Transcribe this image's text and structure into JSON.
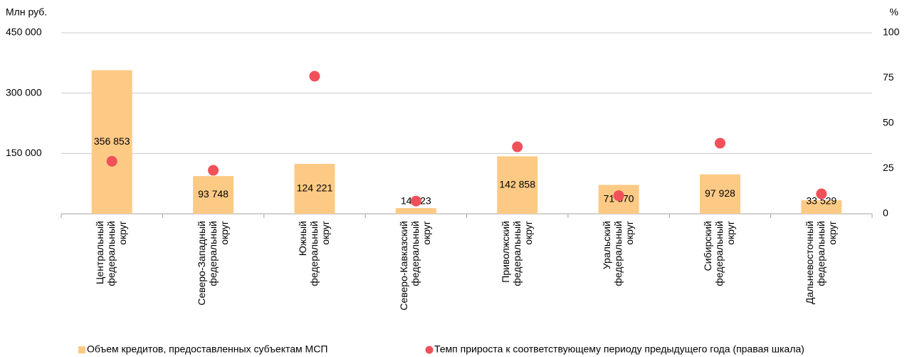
{
  "chart_data": {
    "type": "bar",
    "y_label": "Млн руб.",
    "y2_label": "%",
    "categories": [
      "Центральный\nфедеральный\nокруг",
      "Северо-Западный\nфедеральный\nокруг",
      "Южный\nфедеральный\nокруг",
      "Северо-Кавказский\nфедеральный\nокруг",
      "Приволжский\nфедеральный\nокруг",
      "Уральский\nфедеральный\nокруг",
      "Сибирский\nфедеральный\nокруг",
      "Дальневосточный\nфедеральный\nокруг"
    ],
    "series": [
      {
        "name": "Объем кредитов, предоставленных субъектам МСП",
        "type": "bar",
        "color": "#fdca85",
        "values": [
          356853,
          93748,
          124221,
          14123,
          142858,
          71870,
          97928,
          33529
        ],
        "value_labels": [
          "356 853",
          "93 748",
          "124 221",
          "14 123",
          "142 858",
          "71 870",
          "97 928",
          "33 529"
        ]
      },
      {
        "name": "Темп прироста к соответствующему периоду предыдущего года (правая шкала)",
        "type": "scatter",
        "axis": "y2",
        "color": "#f0505a",
        "values": [
          29,
          24,
          76,
          7,
          37,
          10,
          39,
          11
        ]
      }
    ],
    "ylim": [
      0,
      450000
    ],
    "yticks": [
      {
        "value": 150000,
        "label": "150 000"
      },
      {
        "value": 300000,
        "label": "300 000"
      },
      {
        "value": 450000,
        "label": "450 000"
      }
    ],
    "y2lim": [
      0,
      100
    ],
    "y2ticks": [
      0,
      25,
      50,
      75,
      100
    ],
    "grid": true
  }
}
